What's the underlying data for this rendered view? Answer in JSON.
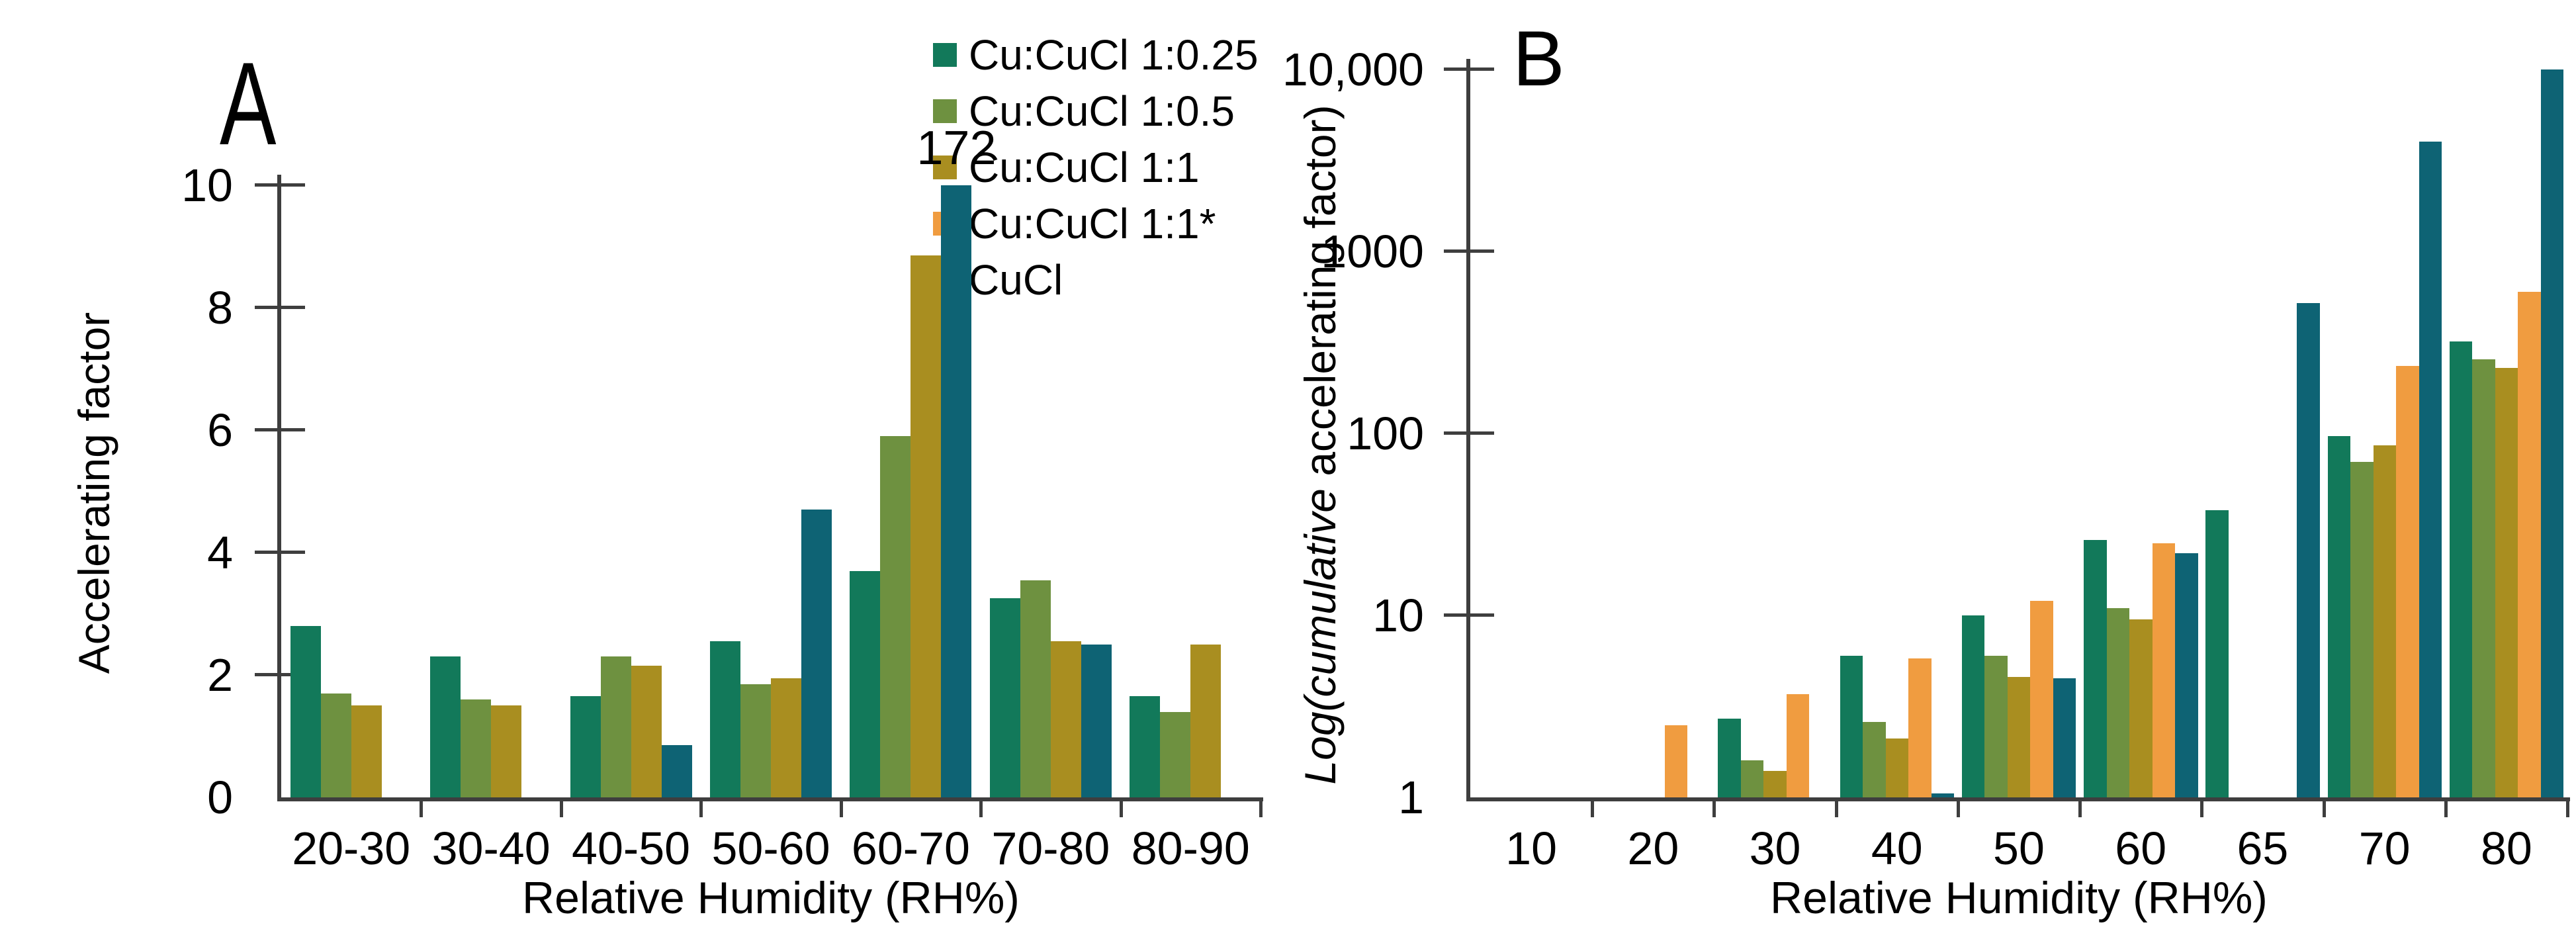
{
  "figure": {
    "background": "#ffffff",
    "axis_color": "#3e3e3e",
    "text_color": "#000000"
  },
  "legend": {
    "items": [
      {
        "label": "Cu:CuCl 1:0.25",
        "color": "#12795A"
      },
      {
        "label": "Cu:CuCl 1:0.5",
        "color": "#6E9140"
      },
      {
        "label": "Cu:CuCl 1:1",
        "color": "#A98E20"
      },
      {
        "label": "Cu:CuCl 1:1*",
        "color": "#F09C40"
      },
      {
        "label": "CuCl",
        "color": "#0E6374"
      }
    ]
  },
  "chart_data": [
    {
      "type": "bar",
      "panel_label": "A",
      "ylabel": "Accelerating factor",
      "xlabel": "Relative Humidity (RH%)",
      "y_scale": "linear",
      "ylim": [
        0,
        10
      ],
      "grid": false,
      "legend_position": "inside-top-right",
      "yticks": [
        {
          "value": 0,
          "label": "0"
        },
        {
          "value": 2,
          "label": "2"
        },
        {
          "value": 4,
          "label": "4"
        },
        {
          "value": 6,
          "label": "6"
        },
        {
          "value": 8,
          "label": "8"
        },
        {
          "value": 10,
          "label": "10"
        }
      ],
      "categories": [
        "20-30",
        "30-40",
        "40-50",
        "50-60",
        "60-70",
        "70-80",
        "80-90"
      ],
      "series": [
        {
          "name": "Cu:CuCl 1:0.25",
          "color": "#12795A",
          "values": [
            2.8,
            2.3,
            1.65,
            2.55,
            3.7,
            3.25,
            1.65
          ]
        },
        {
          "name": "Cu:CuCl 1:0.5",
          "color": "#6E9140",
          "values": [
            1.7,
            1.6,
            2.3,
            1.85,
            5.9,
            3.55,
            1.4
          ]
        },
        {
          "name": "Cu:CuCl 1:1",
          "color": "#A98E20",
          "values": [
            1.5,
            1.5,
            2.15,
            1.95,
            8.85,
            2.55,
            2.5
          ]
        },
        {
          "name": "CuCl",
          "color": "#0E6374",
          "values": [
            null,
            null,
            0.85,
            4.7,
            172,
            2.5,
            null
          ]
        }
      ],
      "annotations": [
        {
          "text": "172",
          "category": "60-70",
          "series": "CuCl",
          "note": "bar clipped at axis maximum 10"
        }
      ]
    },
    {
      "type": "bar",
      "panel_label": "B",
      "ylabel_italic": "Log(cumulative",
      "ylabel_rest": " accelerating factor)",
      "xlabel": "Relative Humidity (RH%)",
      "y_scale": "log",
      "ylim": [
        1,
        10000
      ],
      "grid": false,
      "yticks": [
        {
          "value": 1,
          "label": "1"
        },
        {
          "value": 10,
          "label": "10"
        },
        {
          "value": 100,
          "label": "100"
        },
        {
          "value": 1000,
          "label": "1000"
        },
        {
          "value": 10000,
          "label": "10,000"
        }
      ],
      "categories": [
        "10",
        "20",
        "30",
        "40",
        "50",
        "60",
        "65",
        "70",
        "80"
      ],
      "series": [
        {
          "name": "Cu:CuCl 1:0.25",
          "color": "#12795A",
          "values": [
            null,
            null,
            2.7,
            6.0,
            10,
            26,
            38,
            97,
            320
          ]
        },
        {
          "name": "Cu:CuCl 1:0.5",
          "color": "#6E9140",
          "values": [
            null,
            null,
            1.6,
            2.6,
            6.0,
            11,
            null,
            70,
            255
          ]
        },
        {
          "name": "Cu:CuCl 1:1",
          "color": "#A98E20",
          "values": [
            null,
            null,
            1.4,
            2.1,
            4.6,
            9.5,
            null,
            86,
            230
          ]
        },
        {
          "name": "Cu:CuCl 1:1*",
          "color": "#F09C40",
          "values": [
            null,
            2.5,
            3.7,
            5.8,
            12,
            25,
            null,
            235,
            600
          ]
        },
        {
          "name": "CuCl",
          "color": "#0E6374",
          "values": [
            null,
            null,
            null,
            1.05,
            4.5,
            22,
            520,
            4000,
            10000
          ]
        }
      ],
      "annotations": []
    }
  ]
}
